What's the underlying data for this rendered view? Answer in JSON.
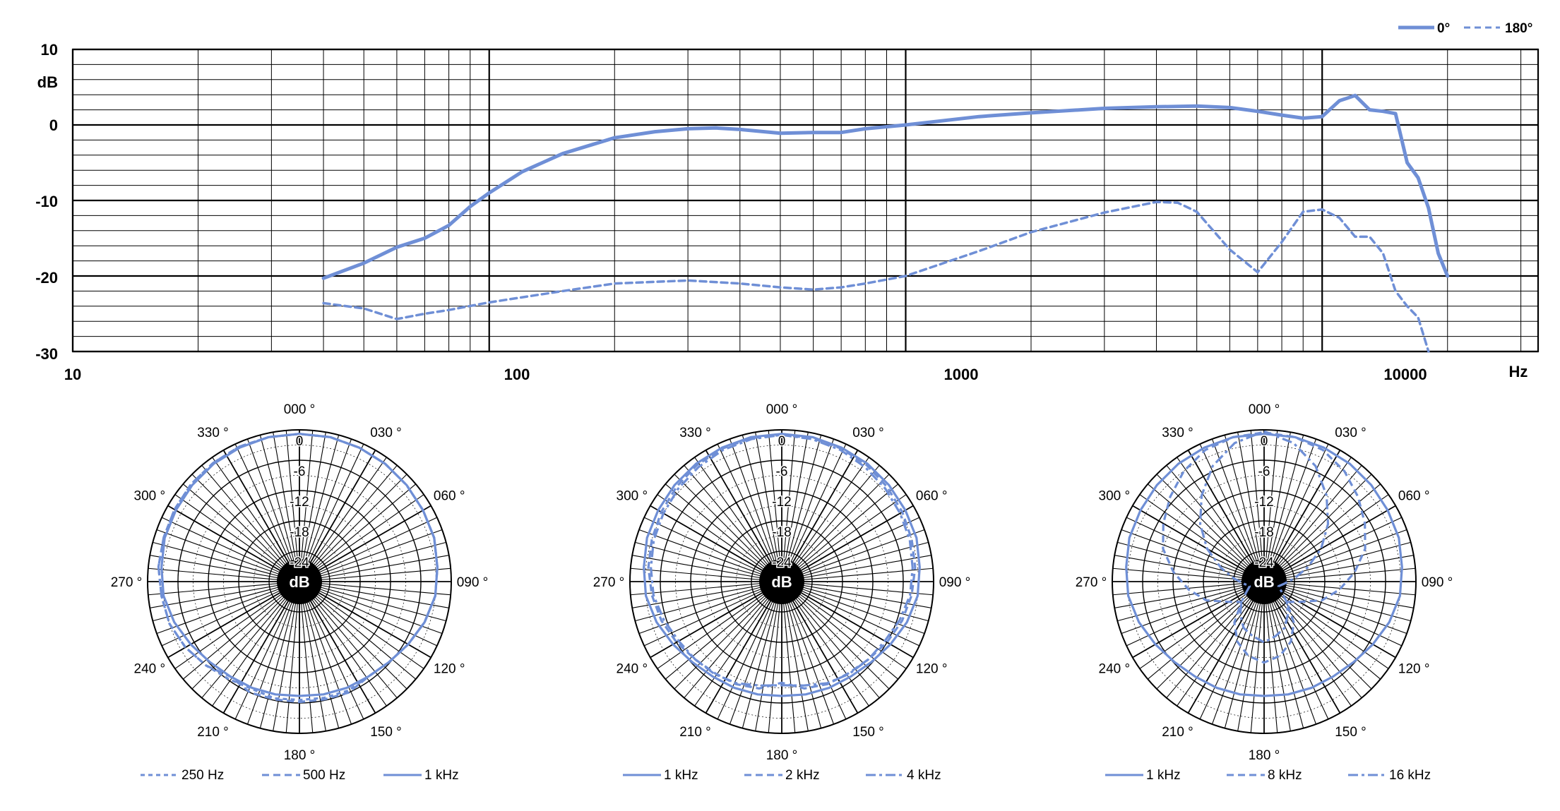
{
  "chart_data": [
    {
      "type": "line",
      "x_scale": "log",
      "xlim": [
        10,
        33000
      ],
      "ylim": [
        -30,
        10
      ],
      "xlabel": "Hz",
      "ylabel": "dB",
      "x_tick_labels": [
        "10",
        "100",
        "1000",
        "10000"
      ],
      "y_tick_labels": [
        "10",
        "0",
        "-10",
        "-20",
        "-30"
      ],
      "grid": true,
      "legend_position": "top-right",
      "series": [
        {
          "name": "0°",
          "style": "solid",
          "color": "#6f8fd6",
          "points": [
            [
              40,
              -20.3
            ],
            [
              50,
              -18.3
            ],
            [
              60,
              -16.2
            ],
            [
              70,
              -15
            ],
            [
              80,
              -13.3
            ],
            [
              90,
              -10.8
            ],
            [
              100,
              -9
            ],
            [
              120,
              -6.2
            ],
            [
              150,
              -3.8
            ],
            [
              200,
              -1.7
            ],
            [
              250,
              -0.9
            ],
            [
              300,
              -0.5
            ],
            [
              350,
              -0.4
            ],
            [
              400,
              -0.6
            ],
            [
              500,
              -1.1
            ],
            [
              600,
              -1.0
            ],
            [
              700,
              -1.0
            ],
            [
              800,
              -0.5
            ],
            [
              1000,
              0
            ],
            [
              1500,
              1.1
            ],
            [
              2000,
              1.6
            ],
            [
              3000,
              2.2
            ],
            [
              4000,
              2.4
            ],
            [
              5000,
              2.5
            ],
            [
              6000,
              2.3
            ],
            [
              7000,
              1.8
            ],
            [
              8000,
              1.3
            ],
            [
              9000,
              0.9
            ],
            [
              10000,
              1.1
            ],
            [
              11000,
              3.2
            ],
            [
              12000,
              3.9
            ],
            [
              13000,
              2.0
            ],
            [
              14000,
              1.8
            ],
            [
              15000,
              1.5
            ],
            [
              16000,
              -5.0
            ],
            [
              17000,
              -7.0
            ],
            [
              18000,
              -11.0
            ],
            [
              19000,
              -17.0
            ],
            [
              20000,
              -20.0
            ]
          ]
        },
        {
          "name": "180°",
          "style": "dashed",
          "color": "#6f8fd6",
          "points": [
            [
              40,
              -23.6
            ],
            [
              50,
              -24.3
            ],
            [
              60,
              -25.7
            ],
            [
              70,
              -25.0
            ],
            [
              80,
              -24.5
            ],
            [
              100,
              -23.5
            ],
            [
              150,
              -22.0
            ],
            [
              200,
              -21.0
            ],
            [
              300,
              -20.6
            ],
            [
              400,
              -21.0
            ],
            [
              500,
              -21.5
            ],
            [
              600,
              -21.8
            ],
            [
              700,
              -21.5
            ],
            [
              800,
              -21.0
            ],
            [
              1000,
              -20.0
            ],
            [
              1500,
              -16.7
            ],
            [
              2000,
              -14.2
            ],
            [
              3000,
              -11.6
            ],
            [
              4000,
              -10.2
            ],
            [
              4500,
              -10.3
            ],
            [
              5000,
              -11.5
            ],
            [
              6000,
              -16.5
            ],
            [
              7000,
              -19.5
            ],
            [
              8000,
              -15.5
            ],
            [
              9000,
              -11.5
            ],
            [
              10000,
              -11.2
            ],
            [
              11000,
              -12.3
            ],
            [
              12000,
              -14.8
            ],
            [
              13000,
              -14.8
            ],
            [
              14000,
              -17.0
            ],
            [
              15000,
              -22.0
            ],
            [
              16000,
              -24.0
            ],
            [
              17000,
              -25.5
            ],
            [
              18000,
              -30.0
            ]
          ]
        }
      ]
    },
    {
      "type": "polar",
      "angle_labels": [
        "000 °",
        "030 °",
        "060 °",
        "090 °",
        "120 °",
        "150 °",
        "180 °",
        "210 °",
        "240 °",
        "270 °",
        "300 °",
        "330 °"
      ],
      "radial_labels": [
        "0",
        "-6",
        "-12",
        "-18",
        "-24"
      ],
      "center_label": "dB",
      "rlim": [
        -30,
        0
      ],
      "series": [
        {
          "name": "250 Hz",
          "style": "dotted",
          "color": "#6f8fd6",
          "values_db": [
            -0.8,
            -0.8,
            -1,
            -1.2,
            -1.5,
            -1.8,
            -2,
            -2.6,
            -3,
            -4,
            -5.2,
            -6.2,
            -6.8,
            -6.4,
            -6.5,
            -6.6,
            -6.4,
            -6.8,
            -6.2,
            -5.2,
            -4,
            -3,
            -2.6,
            -2,
            -1.8,
            -1.5,
            -1.2,
            -1,
            -0.8,
            -0.8
          ]
        },
        {
          "name": "500 Hz",
          "style": "dashed",
          "color": "#6f8fd6",
          "values_db": [
            -0.8,
            -0.8,
            -1,
            -1.2,
            -1.5,
            -1.8,
            -2,
            -2.6,
            -3,
            -4,
            -5.2,
            -6.2,
            -6.8,
            -6.0,
            -6.2,
            -6.2,
            -6.2,
            -6.0,
            -6.8,
            -5.2,
            -4,
            -3,
            -2.6,
            -2,
            -1.8,
            -1.5,
            -1.2,
            -1,
            -0.8,
            -0.8
          ]
        },
        {
          "name": "1 kHz",
          "style": "solid",
          "color": "#6f8fd6",
          "values_db": [
            -0.8,
            -0.8,
            -1,
            -1.2,
            -1.5,
            -1.8,
            -2,
            -2.6,
            -3,
            -4,
            -5.2,
            -6.2,
            -6.8,
            -7,
            -7.2,
            -7.4,
            -7.2,
            -7,
            -6.8,
            -6.2,
            -5.2,
            -4,
            -3,
            -2.6,
            -2,
            -1.8,
            -1.5,
            -1.2,
            -1,
            -0.8
          ]
        }
      ]
    },
    {
      "type": "polar",
      "angle_labels": [
        "000 °",
        "030 °",
        "060 °",
        "090 °",
        "120 °",
        "150 °",
        "180 °",
        "210 °",
        "240 °",
        "270 °",
        "300 °",
        "330 °"
      ],
      "radial_labels": [
        "0",
        "-6",
        "-12",
        "-18",
        "-24"
      ],
      "center_label": "dB",
      "rlim": [
        -30,
        0
      ],
      "series": [
        {
          "name": "1 kHz",
          "style": "solid",
          "color": "#6f8fd6",
          "values_db": [
            -0.8,
            -0.8,
            -1,
            -1.2,
            -1.5,
            -1.8,
            -2,
            -2.6,
            -3,
            -4,
            -5.2,
            -6.2,
            -6.8,
            -7,
            -7.2,
            -7.4,
            -7.2,
            -7,
            -6.8,
            -6.2,
            -5.2,
            -4,
            -3,
            -2.6,
            -2,
            -1.8,
            -1.5,
            -1.2,
            -1,
            -0.8
          ]
        },
        {
          "name": "2 kHz",
          "style": "dashed",
          "color": "#6f8fd6",
          "values_db": [
            -1,
            -1,
            -1.2,
            -1.5,
            -2,
            -2.5,
            -3,
            -3.5,
            -4.2,
            -5,
            -6,
            -7,
            -7.6,
            -7.8,
            -8.4,
            -10,
            -8.4,
            -7.8,
            -7.6,
            -7,
            -6,
            -5,
            -4.2,
            -3.5,
            -3,
            -2.5,
            -2,
            -1.5,
            -1.2,
            -1
          ]
        },
        {
          "name": "4 kHz",
          "style": "dashdot",
          "color": "#6f8fd6",
          "values_db": [
            -1,
            -1.2,
            -1.5,
            -2,
            -2.5,
            -3,
            -3.4,
            -4,
            -4.5,
            -5.5,
            -6.5,
            -7,
            -7.4,
            -8,
            -9,
            -9.5,
            -9,
            -8,
            -7.4,
            -7,
            -6.5,
            -5.5,
            -4.5,
            -4,
            -3.4,
            -3,
            -2.5,
            -2,
            -1.5,
            -1.2
          ]
        }
      ]
    },
    {
      "type": "polar",
      "angle_labels": [
        "000 °",
        "030 °",
        "060 °",
        "090 °",
        "120 °",
        "150 °",
        "180 °",
        "210 °",
        "240 °",
        "270 °",
        "300 °",
        "330 °"
      ],
      "radial_labels": [
        "0",
        "-6",
        "-12",
        "-18",
        "-24"
      ],
      "center_label": "dB",
      "rlim": [
        -30,
        0
      ],
      "series": [
        {
          "name": "1 kHz",
          "style": "solid",
          "color": "#6f8fd6",
          "values_db": [
            -0.8,
            -0.8,
            -1,
            -1.2,
            -1.5,
            -1.8,
            -2,
            -2.6,
            -3,
            -4,
            -5.2,
            -6.2,
            -6.8,
            -7,
            -7.2,
            -7.4,
            -7.2,
            -7,
            -6.8,
            -6.2,
            -5.2,
            -4,
            -3,
            -2.6,
            -2,
            -1.8,
            -1.5,
            -1.2,
            -1,
            -0.8
          ]
        },
        {
          "name": "8 kHz",
          "style": "dashed",
          "color": "#6f8fd6",
          "values_db": [
            -0.5,
            -0.8,
            -1.5,
            -3,
            -5,
            -7,
            -9,
            -12,
            -15,
            -18,
            -22,
            -24,
            -20,
            -17,
            -15,
            -14,
            -15,
            -17,
            -20,
            -24,
            -22,
            -18,
            -15,
            -12,
            -9,
            -7,
            -5,
            -3,
            -1.5,
            -0.8
          ]
        },
        {
          "name": "16 kHz",
          "style": "dashdot",
          "color": "#6f8fd6",
          "values_db": [
            -0.3,
            -2,
            -5,
            -9,
            -13,
            -17,
            -21,
            -24,
            -26,
            -27,
            -26,
            -24,
            -22,
            -20,
            -19,
            -18,
            -19,
            -20,
            -22,
            -24,
            -26,
            -27,
            -26,
            -24,
            -21,
            -17,
            -13,
            -9,
            -5,
            -2
          ]
        }
      ]
    }
  ]
}
